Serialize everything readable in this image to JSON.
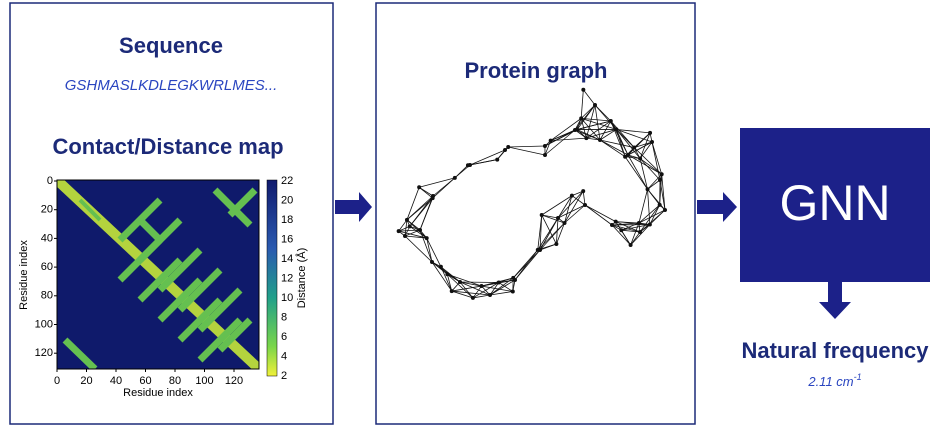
{
  "left_panel": {
    "sequence_title": "Sequence",
    "sequence": "GSHMASLKDLEGKWRLMES...",
    "map_title": "Contact/Distance map",
    "map": {
      "x_label": "Residue index",
      "y_label": "Residue index",
      "x_ticks": [
        "0",
        "20",
        "40",
        "60",
        "80",
        "100",
        "120"
      ],
      "y_ticks": [
        "0",
        "20",
        "40",
        "60",
        "80",
        "100",
        "120"
      ],
      "colorbar_label": "Distance (Å)",
      "colorbar_ticks": [
        "22",
        "20",
        "18",
        "16",
        "14",
        "12",
        "10",
        "8",
        "6",
        "4",
        "2"
      ]
    }
  },
  "middle_panel": {
    "title": "Protein graph"
  },
  "model": {
    "label": "GNN"
  },
  "output": {
    "title": "Natural frequency",
    "value": "2.11 cm",
    "exponent": "-1"
  }
}
